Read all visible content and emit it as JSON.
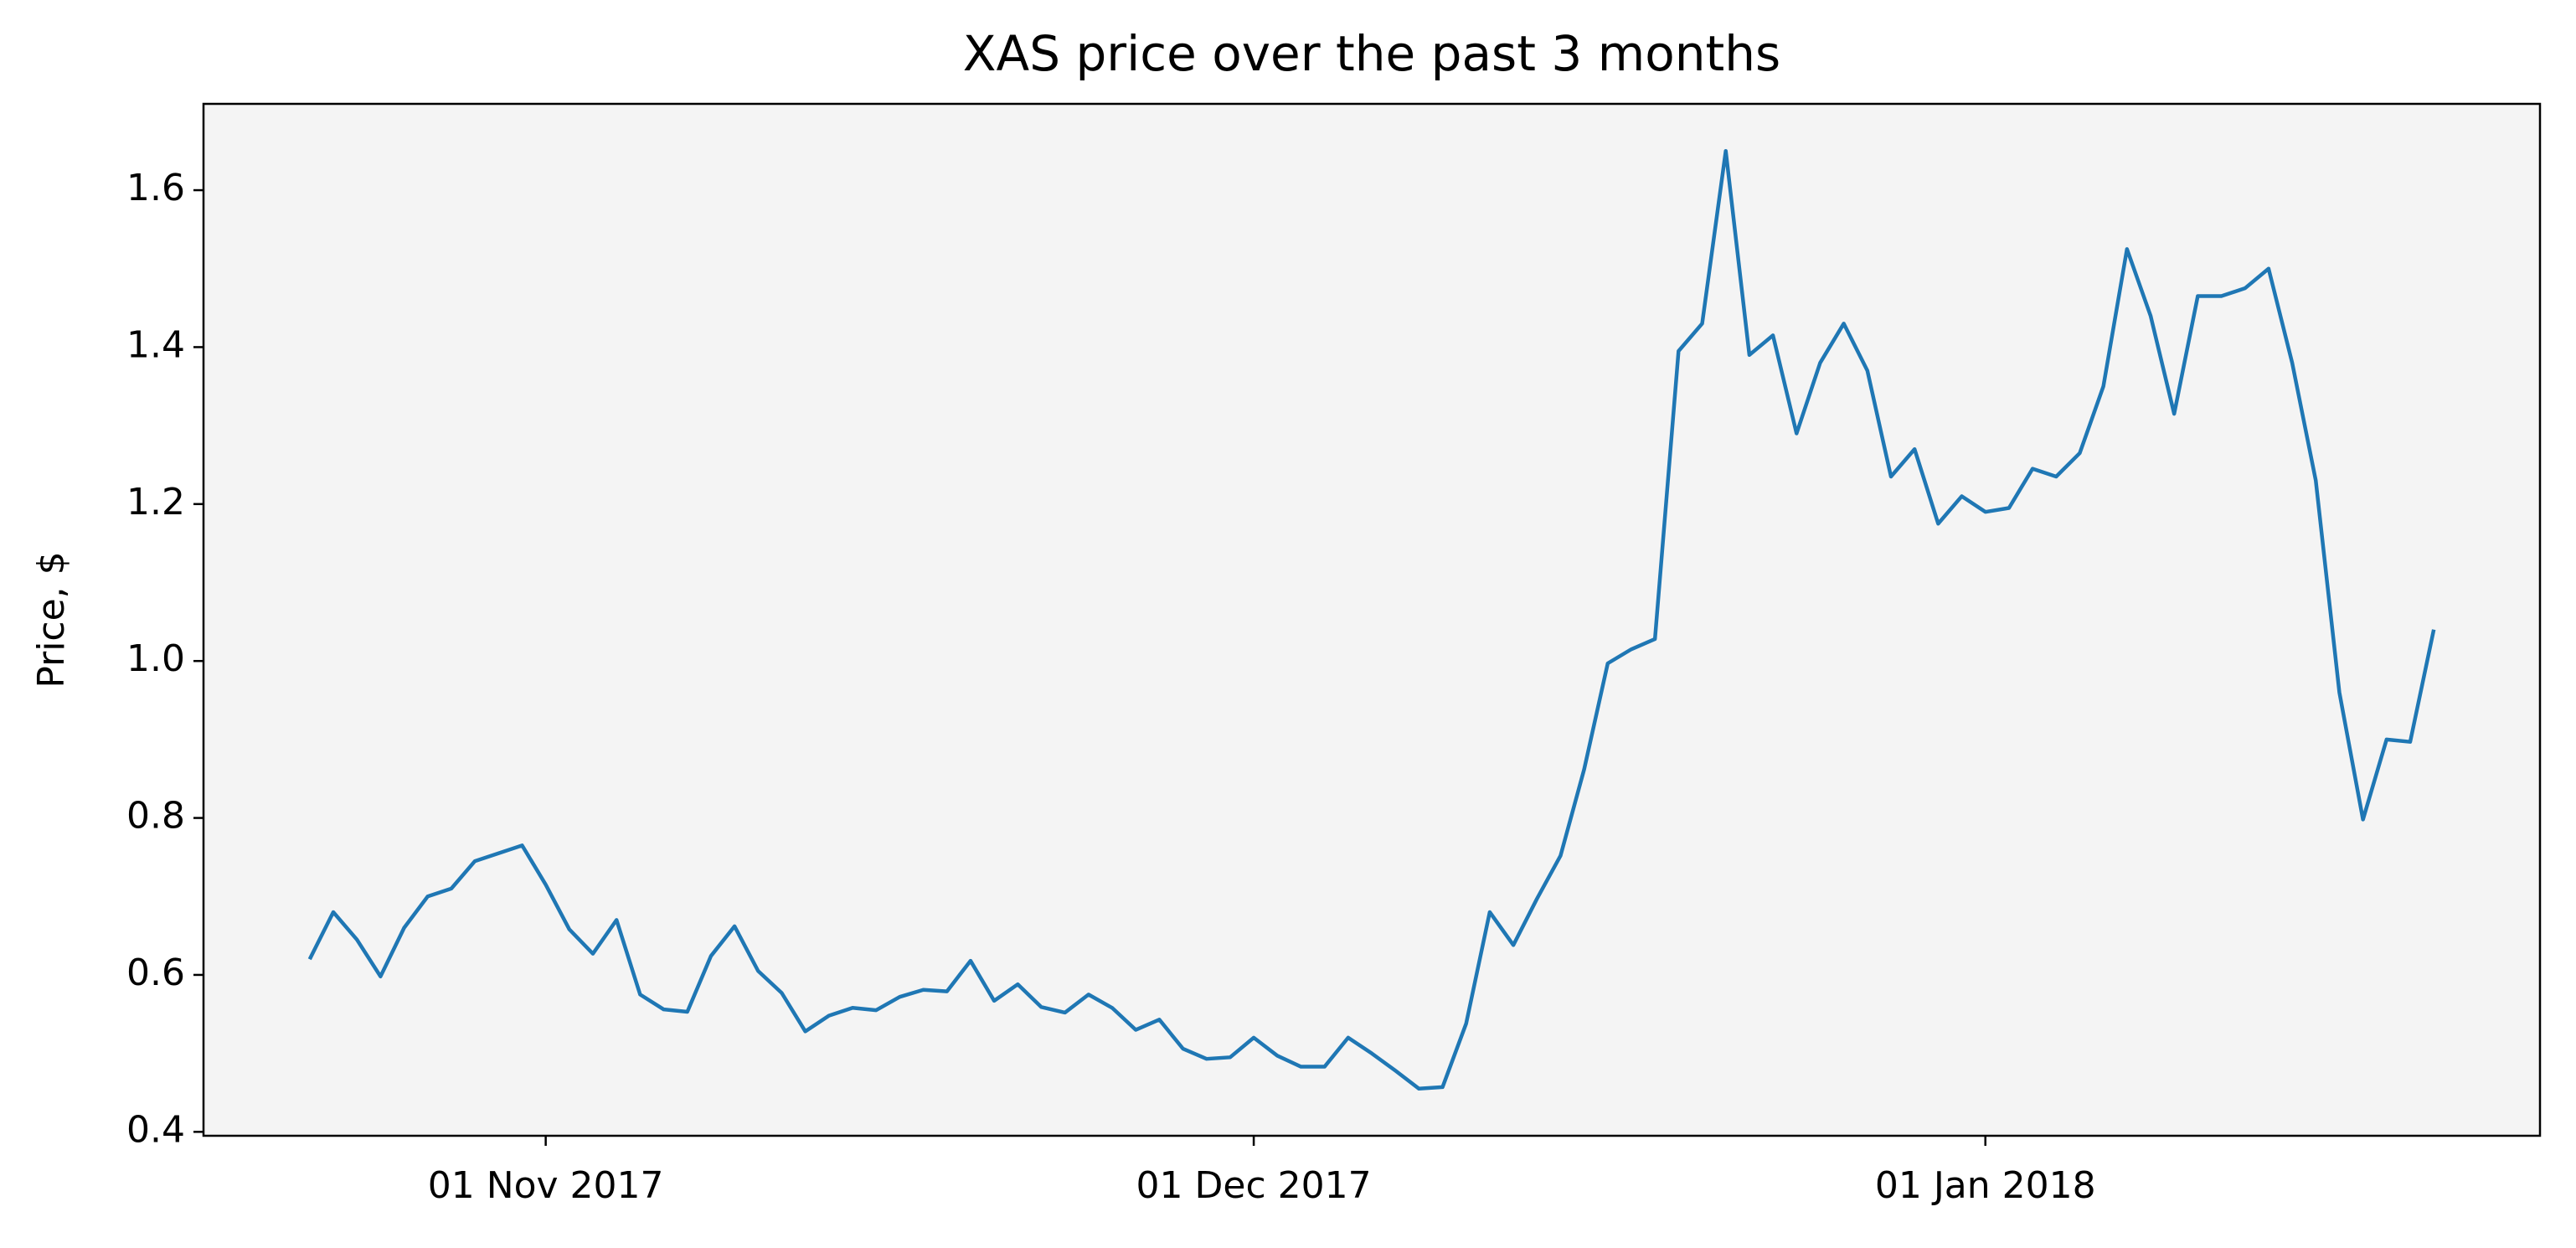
{
  "chart_data": {
    "type": "line",
    "title": "XAS price over the past 3 months",
    "y_label": "Price, $",
    "x": [
      "2017-10-22",
      "2017-10-23",
      "2017-10-24",
      "2017-10-25",
      "2017-10-26",
      "2017-10-27",
      "2017-10-28",
      "2017-10-29",
      "2017-10-30",
      "2017-10-31",
      "2017-11-01",
      "2017-11-02",
      "2017-11-03",
      "2017-11-04",
      "2017-11-05",
      "2017-11-06",
      "2017-11-07",
      "2017-11-08",
      "2017-11-09",
      "2017-11-10",
      "2017-11-11",
      "2017-11-12",
      "2017-11-13",
      "2017-11-14",
      "2017-11-15",
      "2017-11-16",
      "2017-11-17",
      "2017-11-18",
      "2017-11-19",
      "2017-11-20",
      "2017-11-21",
      "2017-11-22",
      "2017-11-23",
      "2017-11-24",
      "2017-11-25",
      "2017-11-26",
      "2017-11-27",
      "2017-11-28",
      "2017-11-29",
      "2017-11-30",
      "2017-12-01",
      "2017-12-02",
      "2017-12-03",
      "2017-12-04",
      "2017-12-05",
      "2017-12-06",
      "2017-12-07",
      "2017-12-08",
      "2017-12-09",
      "2017-12-10",
      "2017-12-11",
      "2017-12-12",
      "2017-12-13",
      "2017-12-14",
      "2017-12-15",
      "2017-12-16",
      "2017-12-17",
      "2017-12-18",
      "2017-12-19",
      "2017-12-20",
      "2017-12-21",
      "2017-12-22",
      "2017-12-23",
      "2017-12-24",
      "2017-12-25",
      "2017-12-26",
      "2017-12-27",
      "2017-12-28",
      "2017-12-29",
      "2017-12-30",
      "2017-12-31",
      "2018-01-01",
      "2018-01-02",
      "2018-01-03",
      "2018-01-04",
      "2018-01-05",
      "2018-01-06",
      "2018-01-07",
      "2018-01-08",
      "2018-01-09",
      "2018-01-10",
      "2018-01-11",
      "2018-01-12",
      "2018-01-13",
      "2018-01-14",
      "2018-01-15",
      "2018-01-16",
      "2018-01-17",
      "2018-01-18",
      "2018-01-19",
      "2018-01-20"
    ],
    "series": [
      {
        "color": "#1f77b4",
        "values": [
          0.62,
          0.68,
          0.645,
          0.598,
          0.66,
          0.7,
          0.71,
          0.745,
          0.755,
          0.765,
          0.715,
          0.658,
          0.627,
          0.67,
          0.575,
          0.556,
          0.553,
          0.624,
          0.662,
          0.605,
          0.577,
          0.528,
          0.548,
          0.558,
          0.555,
          0.572,
          0.581,
          0.579,
          0.618,
          0.567,
          0.588,
          0.559,
          0.552,
          0.575,
          0.558,
          0.53,
          0.543,
          0.506,
          0.493,
          0.495,
          0.52,
          0.497,
          0.483,
          0.483,
          0.52,
          0.5,
          0.478,
          0.455,
          0.457,
          0.538,
          0.68,
          0.638,
          0.697,
          0.752,
          0.862,
          0.997,
          1.015,
          1.028,
          1.395,
          1.43,
          1.65,
          1.39,
          1.415,
          1.29,
          1.38,
          1.43,
          1.37,
          1.235,
          1.27,
          1.175,
          1.21,
          1.19,
          1.195,
          1.245,
          1.235,
          1.265,
          1.35,
          1.525,
          1.44,
          1.315,
          1.465,
          1.465,
          1.475,
          1.5,
          1.38,
          1.23,
          0.96,
          0.798,
          0.9,
          0.897,
          1.04
        ]
      }
    ],
    "xlim": [
      "2017-10-17T12:00:00Z",
      "2018-01-24T12:00:00Z"
    ],
    "xticks": [
      {
        "value": "2017-11-01",
        "label": "01 Nov 2017"
      },
      {
        "value": "2017-12-01",
        "label": "01 Dec 2017"
      },
      {
        "value": "2018-01-01",
        "label": "01 Jan 2018"
      }
    ],
    "ylim": [
      0.395,
      1.71
    ],
    "yticks": [
      0.4,
      0.6,
      0.8,
      {
        "value": 1.0,
        "label": "1.0"
      },
      1.2,
      1.4,
      1.6
    ]
  }
}
